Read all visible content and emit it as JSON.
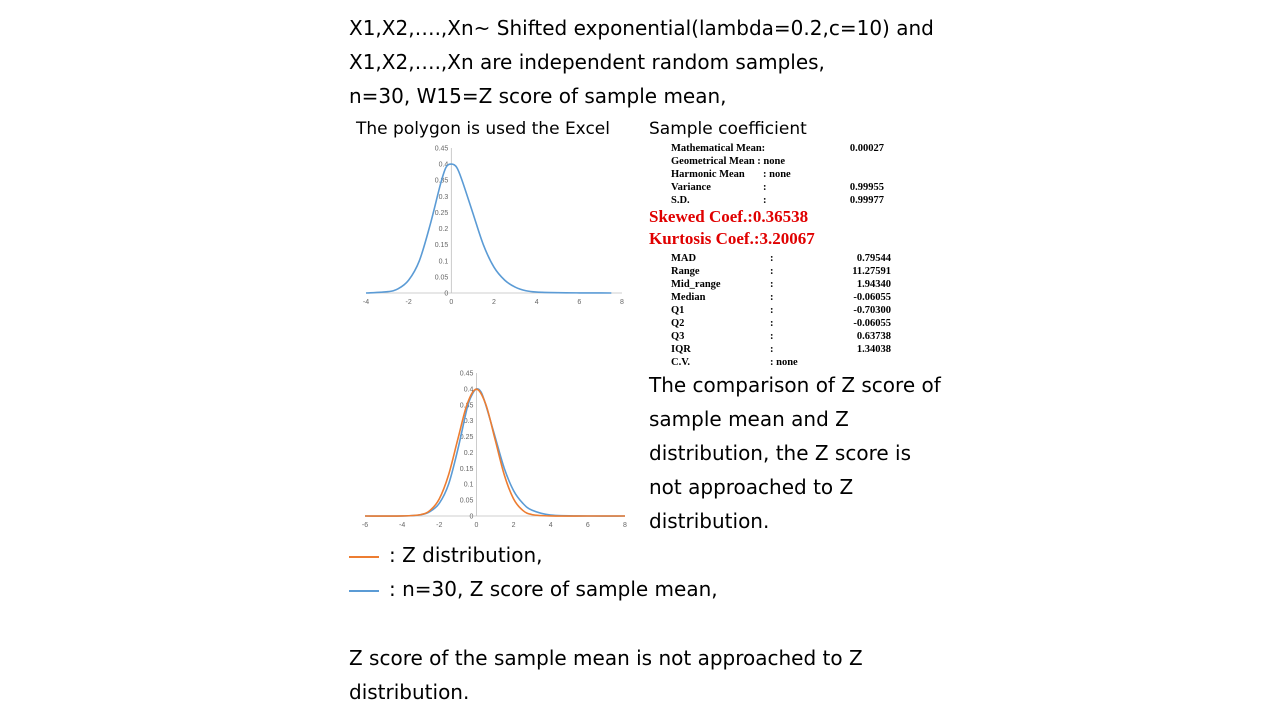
{
  "intro": [
    "X1,X2,….,Xn~ Shifted exponential(lambda=0.2,c=10) and",
    "X1,X2,….,Xn are independent random samples,",
    "n=30, W15=Z score of sample mean,"
  ],
  "captions": {
    "polygon": "The polygon is used the Excel",
    "coefficient": "Sample coefficient"
  },
  "stats_top": [
    {
      "label": "Mathematical Mean:",
      "colon": "",
      "value": "0.00027"
    },
    {
      "label": "Geometrical Mean : none",
      "colon": "",
      "value": ""
    },
    {
      "label": "Harmonic Mean",
      "colon": ": none",
      "value": ""
    },
    {
      "label": "Variance",
      "colon": ":",
      "value": "0.99955"
    },
    {
      "label": "S.D.",
      "colon": ":",
      "value": "0.99977"
    }
  ],
  "skewed": "Skewed Coef.:0.36538",
  "kurtosis": "Kurtosis Coef.:3.20067",
  "stats_bottom": [
    {
      "label": "MAD",
      "colon": ":",
      "value": "0.79544"
    },
    {
      "label": "Range",
      "colon": ":",
      "value": "11.27591"
    },
    {
      "label": "Mid_range",
      "colon": ":",
      "value": "1.94340"
    },
    {
      "label": "Median",
      "colon": ":",
      "value": "-0.06055"
    },
    {
      "label": "Q1",
      "colon": ":",
      "value": "-0.70300"
    },
    {
      "label": "Q2",
      "colon": ":",
      "value": "-0.06055"
    },
    {
      "label": "Q3",
      "colon": ":",
      "value": "0.63738"
    },
    {
      "label": "IQR",
      "colon": ":",
      "value": "1.34038"
    },
    {
      "label": "C.V.",
      "colon": ": none",
      "value": ""
    }
  ],
  "comparison": [
    "The comparison of Z score of",
    "sample mean and Z",
    "distribution, the Z score is",
    "not approached to Z",
    "distribution."
  ],
  "legend": [
    {
      "text": ": Z distribution,",
      "color": "#ed7d31"
    },
    {
      "text": ":   n=30, Z score of sample mean,",
      "color": "#5b9bd5"
    }
  ],
  "conclusion": [
    "Z score of the sample mean is not approached to Z",
    "distribution."
  ],
  "colors": {
    "sample": "#5b9bd5",
    "z": "#ed7d31",
    "highlight": "#e00000"
  },
  "chart_data": [
    {
      "type": "line",
      "x_ticks": [
        "-4",
        "-2",
        "0",
        "2",
        "4",
        "6",
        "8"
      ],
      "y_ticks": [
        "0",
        "0.05",
        "0.1",
        "0.15",
        "0.2",
        "0.25",
        "0.3",
        "0.35",
        "0.4",
        "0.45"
      ],
      "xlim": [
        -4,
        8
      ],
      "ylim": [
        0,
        0.45
      ],
      "series": [
        {
          "x": [
            -4,
            -3,
            -2.5,
            -2,
            -1.5,
            -1,
            -0.5,
            -0.25,
            0,
            0.25,
            0.5,
            1,
            1.5,
            2,
            2.5,
            3,
            3.5,
            4,
            5,
            6,
            7,
            7.5
          ],
          "y": [
            0.0,
            0.004,
            0.013,
            0.04,
            0.1,
            0.21,
            0.34,
            0.39,
            0.4,
            0.39,
            0.35,
            0.25,
            0.15,
            0.08,
            0.04,
            0.018,
            0.007,
            0.003,
            0.001,
            0.0003,
            0.0001,
            0.0
          ]
        }
      ]
    },
    {
      "type": "line",
      "x_ticks": [
        "-6",
        "-4",
        "-2",
        "0",
        "2",
        "4",
        "6",
        "8"
      ],
      "y_ticks": [
        "0",
        "0.05",
        "0.1",
        "0.15",
        "0.2",
        "0.25",
        "0.3",
        "0.35",
        "0.4",
        "0.45"
      ],
      "xlim": [
        -6,
        8
      ],
      "ylim": [
        0,
        0.45
      ],
      "series": [
        {
          "x": [
            -6,
            -4,
            -3,
            -2.5,
            -2,
            -1.5,
            -1,
            -0.5,
            -0.25,
            0,
            0.25,
            0.5,
            1,
            1.5,
            2,
            2.5,
            3,
            4,
            6,
            8
          ],
          "y": [
            0.0,
            0.0,
            0.004,
            0.014,
            0.04,
            0.1,
            0.21,
            0.34,
            0.38,
            0.4,
            0.39,
            0.35,
            0.25,
            0.15,
            0.08,
            0.04,
            0.018,
            0.003,
            0.0,
            0.0
          ]
        },
        {
          "x": [
            -6,
            -4,
            -3,
            -2.5,
            -2,
            -1.5,
            -1,
            -0.5,
            0,
            0.5,
            1,
            1.5,
            2,
            2.5,
            3,
            4,
            6,
            8
          ],
          "y": [
            0.0,
            0.0001,
            0.0044,
            0.0175,
            0.054,
            0.1295,
            0.242,
            0.352,
            0.399,
            0.352,
            0.242,
            0.1295,
            0.054,
            0.0175,
            0.0044,
            0.0001,
            0.0,
            0.0
          ]
        }
      ]
    }
  ]
}
